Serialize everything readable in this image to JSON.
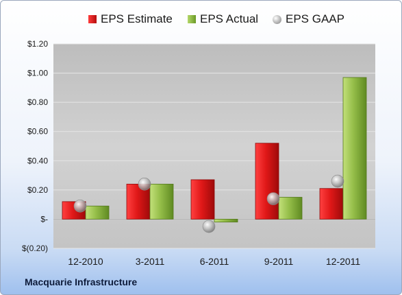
{
  "legend": {
    "estimate": "EPS Estimate",
    "actual": "EPS Actual",
    "gaap": "EPS GAAP"
  },
  "company": "Macquarie Infrastructure",
  "colors": {
    "estimate": "#d42020",
    "actual": "#8ab33e",
    "gaap": "#a8a8a8"
  },
  "chart_data": {
    "type": "bar",
    "categories": [
      "12-2010",
      "3-2011",
      "6-2011",
      "9-2011",
      "12-2011"
    ],
    "series": [
      {
        "name": "EPS Estimate",
        "values": [
          0.12,
          0.24,
          0.27,
          0.52,
          0.21
        ]
      },
      {
        "name": "EPS Actual",
        "values": [
          0.09,
          0.24,
          -0.02,
          0.15,
          0.97
        ]
      },
      {
        "name": "EPS GAAP",
        "values": [
          0.09,
          0.24,
          -0.05,
          0.14,
          0.26
        ]
      }
    ],
    "ylim": [
      -0.2,
      1.2
    ],
    "yticks": [
      -0.2,
      0,
      0.2,
      0.4,
      0.6,
      0.8,
      1.0,
      1.2
    ],
    "ytick_labels": [
      "$(0.20)",
      "$-",
      "$0.20",
      "$0.40",
      "$0.60",
      "$0.80",
      "$1.00",
      "$1.20"
    ],
    "grid": true,
    "legend_position": "top"
  }
}
